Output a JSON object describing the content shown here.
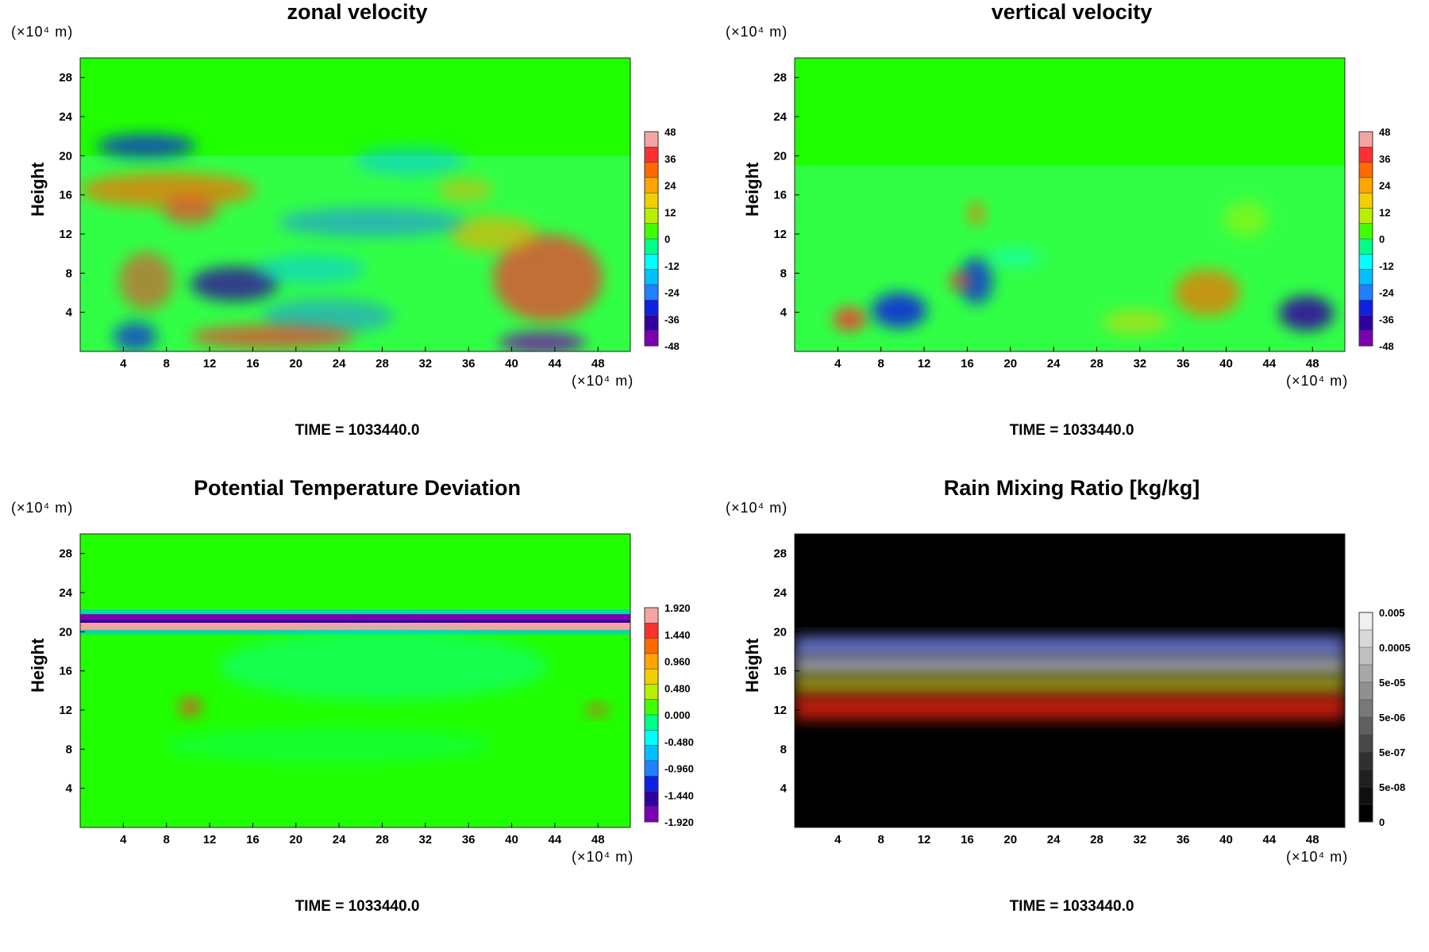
{
  "panels": [
    {
      "title": "zonal velocity",
      "ylabel": "Height",
      "yscale": "(×10⁴ m)",
      "xscale": "(×10⁴ m)",
      "time": "TIME = 1033440.0",
      "colorbar_labels": [
        "48",
        "36",
        "24",
        "12",
        "0",
        "-12",
        "-24",
        "-36",
        "-48"
      ],
      "colormap": "rainbow"
    },
    {
      "title": "vertical velocity",
      "ylabel": "Height",
      "yscale": "(×10⁴ m)",
      "xscale": "(×10⁴ m)",
      "time": "TIME = 1033440.0",
      "colorbar_labels": [
        "48",
        "36",
        "24",
        "12",
        "0",
        "-12",
        "-24",
        "-36",
        "-48"
      ],
      "colormap": "rainbow"
    },
    {
      "title": "Potential Temperature Deviation",
      "ylabel": "Height",
      "yscale": "(×10⁴ m)",
      "xscale": "(×10⁴ m)",
      "time": "TIME = 1033440.0",
      "colorbar_labels": [
        "1.920",
        "1.440",
        "0.960",
        "0.480",
        "0.000",
        "-0.480",
        "-0.960",
        "-1.440",
        "-1.920"
      ],
      "colormap": "rainbow"
    },
    {
      "title": "Rain Mixing Ratio [kg/kg]",
      "ylabel": "Height",
      "yscale": "(×10⁴ m)",
      "xscale": "(×10⁴ m)",
      "time": "TIME = 1033440.0",
      "colorbar_labels": [
        "0.005",
        "0.0005",
        "5e-05",
        "5e-06",
        "5e-07",
        "5e-08",
        "0"
      ],
      "colormap": "grayscale"
    }
  ],
  "chart_data": [
    {
      "type": "heatmap",
      "title": "zonal velocity",
      "ylabel": "Height",
      "x_ticks": [
        4,
        8,
        12,
        16,
        20,
        24,
        28,
        32,
        36,
        40,
        44,
        48
      ],
      "y_ticks": [
        4,
        8,
        12,
        16,
        20,
        24,
        28
      ],
      "xlim": [
        0,
        51
      ],
      "ylim": [
        0,
        30
      ],
      "units": "×10⁴ m",
      "zlim": [
        -48,
        48
      ]
    },
    {
      "type": "heatmap",
      "title": "vertical velocity",
      "ylabel": "Height",
      "x_ticks": [
        4,
        8,
        12,
        16,
        20,
        24,
        28,
        32,
        36,
        40,
        44,
        48
      ],
      "y_ticks": [
        4,
        8,
        12,
        16,
        20,
        24,
        28
      ],
      "xlim": [
        0,
        51
      ],
      "ylim": [
        0,
        30
      ],
      "units": "×10⁴ m",
      "zlim": [
        -48,
        48
      ]
    },
    {
      "type": "heatmap",
      "title": "Potential Temperature Deviation",
      "ylabel": "Height",
      "x_ticks": [
        4,
        8,
        12,
        16,
        20,
        24,
        28,
        32,
        36,
        40,
        44,
        48
      ],
      "y_ticks": [
        4,
        8,
        12,
        16,
        20,
        24,
        28
      ],
      "xlim": [
        0,
        51
      ],
      "ylim": [
        0,
        30
      ],
      "units": "×10⁴ m",
      "zlim": [
        -1.92,
        1.92
      ]
    },
    {
      "type": "heatmap",
      "title": "Rain Mixing Ratio [kg/kg]",
      "ylabel": "Height",
      "x_ticks": [
        4,
        8,
        12,
        16,
        20,
        24,
        28,
        32,
        36,
        40,
        44,
        48
      ],
      "y_ticks": [
        4,
        8,
        12,
        16,
        20,
        24,
        28
      ],
      "xlim": [
        0,
        51
      ],
      "ylim": [
        0,
        30
      ],
      "units": "×10⁴ m",
      "zlim": [
        0,
        0.005
      ]
    }
  ]
}
